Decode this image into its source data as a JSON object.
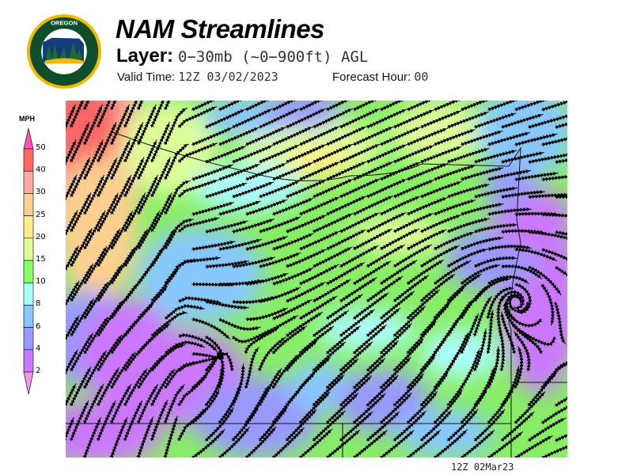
{
  "logo": {
    "text_top": "OREGON",
    "text_bottom": "DEPARTMENT OF FORESTRY"
  },
  "header": {
    "title": "NAM Streamlines",
    "layer_label": "Layer:",
    "layer_value": "0−30mb (~0−900ft) AGL",
    "valid_label": "Valid Time:",
    "valid_value": "12Z 03/02/2023",
    "forecast_label": "Forecast Hour:",
    "forecast_value": "00"
  },
  "legend": {
    "unit": "MPH",
    "ticks": [
      "50",
      "40",
      "30",
      "25",
      "20",
      "15",
      "10",
      "8",
      "6",
      "4",
      "2"
    ],
    "colors": {
      "above_50": "#ff55bb",
      "40_50": "#ff6666",
      "30_40": "#ffaaa0",
      "25_30": "#ffd090",
      "20_25": "#ffee88",
      "15_20": "#ddff99",
      "10_15": "#88ff66",
      "8_10": "#aaffff",
      "6_8": "#88c8ff",
      "4_6": "#9999ff",
      "2_4": "#cc77ff",
      "below_2": "#ee99ee"
    }
  },
  "footer": {
    "stamp": "12Z 02Mar23"
  }
}
